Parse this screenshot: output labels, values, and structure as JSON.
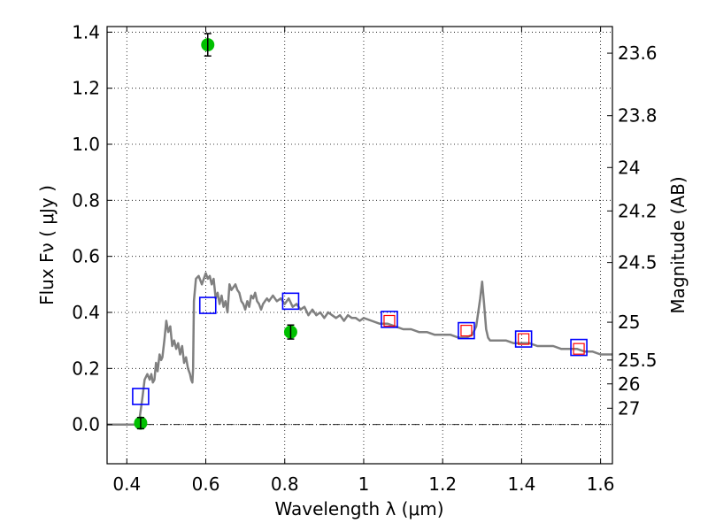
{
  "chart_data": {
    "type": "scatter",
    "xlabel": "Wavelength  λ (μm)",
    "ylabel": "Flux  Fν  ( μJy )",
    "ylabel_right": "Magnitude (AB)",
    "xlim": [
      0.35,
      1.63
    ],
    "ylim": [
      -0.14,
      1.42
    ],
    "grid": true,
    "x_ticks": [
      0.4,
      0.6,
      0.8,
      1.0,
      1.2,
      1.4,
      1.6
    ],
    "x_tick_labels": [
      "0.4",
      "0.6",
      "0.8",
      "1",
      "1.2",
      "1.4",
      "1.6"
    ],
    "y_ticks": [
      0.0,
      0.2,
      0.4,
      0.6,
      0.8,
      1.0,
      1.2,
      1.4
    ],
    "y_tick_labels": [
      "0.0",
      "0.2",
      "0.4",
      "0.6",
      "0.8",
      "1.0",
      "1.2",
      "1.4"
    ],
    "right_ticks": [
      {
        "label": "23.6",
        "flux": 1.325
      },
      {
        "label": "23.8",
        "flux": 1.102
      },
      {
        "label": "24",
        "flux": 0.917
      },
      {
        "label": "24.2",
        "flux": 0.762
      },
      {
        "label": "24.5",
        "flux": 0.578
      },
      {
        "label": "25",
        "flux": 0.365
      },
      {
        "label": "25.5",
        "flux": 0.23
      },
      {
        "label": "26",
        "flux": 0.145
      },
      {
        "label": "27",
        "flux": 0.058
      }
    ],
    "model_spectrum": {
      "color": "#808080",
      "x": [
        0.35,
        0.428,
        0.432,
        0.436,
        0.44,
        0.445,
        0.452,
        0.458,
        0.462,
        0.466,
        0.47,
        0.474,
        0.478,
        0.483,
        0.487,
        0.49,
        0.495,
        0.5,
        0.505,
        0.51,
        0.515,
        0.52,
        0.525,
        0.53,
        0.535,
        0.54,
        0.545,
        0.55,
        0.555,
        0.56,
        0.563,
        0.566,
        0.568,
        0.57,
        0.575,
        0.582,
        0.59,
        0.6,
        0.605,
        0.61,
        0.615,
        0.62,
        0.625,
        0.63,
        0.635,
        0.64,
        0.645,
        0.65,
        0.655,
        0.66,
        0.665,
        0.67,
        0.675,
        0.68,
        0.685,
        0.69,
        0.695,
        0.7,
        0.705,
        0.71,
        0.715,
        0.72,
        0.725,
        0.73,
        0.735,
        0.74,
        0.745,
        0.75,
        0.755,
        0.76,
        0.765,
        0.77,
        0.78,
        0.79,
        0.8,
        0.81,
        0.82,
        0.83,
        0.84,
        0.85,
        0.86,
        0.87,
        0.88,
        0.89,
        0.9,
        0.91,
        0.92,
        0.93,
        0.94,
        0.95,
        0.96,
        0.97,
        0.98,
        0.99,
        1.0,
        1.02,
        1.04,
        1.06,
        1.08,
        1.1,
        1.12,
        1.14,
        1.16,
        1.18,
        1.2,
        1.22,
        1.24,
        1.26,
        1.275,
        1.285,
        1.295,
        1.3,
        1.305,
        1.31,
        1.315,
        1.32,
        1.34,
        1.36,
        1.38,
        1.4,
        1.42,
        1.44,
        1.46,
        1.48,
        1.5,
        1.52,
        1.54,
        1.56,
        1.58,
        1.6,
        1.63
      ],
      "y": [
        0.0,
        0.0,
        0.02,
        0.06,
        0.1,
        0.16,
        0.18,
        0.16,
        0.18,
        0.15,
        0.16,
        0.22,
        0.19,
        0.25,
        0.23,
        0.24,
        0.3,
        0.37,
        0.33,
        0.35,
        0.28,
        0.3,
        0.27,
        0.29,
        0.25,
        0.28,
        0.22,
        0.24,
        0.2,
        0.18,
        0.16,
        0.15,
        0.2,
        0.44,
        0.52,
        0.53,
        0.5,
        0.54,
        0.52,
        0.53,
        0.5,
        0.52,
        0.45,
        0.47,
        0.43,
        0.46,
        0.42,
        0.44,
        0.4,
        0.5,
        0.48,
        0.49,
        0.5,
        0.48,
        0.47,
        0.44,
        0.43,
        0.41,
        0.44,
        0.42,
        0.46,
        0.45,
        0.47,
        0.44,
        0.43,
        0.41,
        0.43,
        0.44,
        0.45,
        0.44,
        0.45,
        0.46,
        0.44,
        0.45,
        0.43,
        0.45,
        0.42,
        0.43,
        0.41,
        0.42,
        0.39,
        0.41,
        0.39,
        0.4,
        0.38,
        0.4,
        0.39,
        0.38,
        0.39,
        0.37,
        0.39,
        0.38,
        0.38,
        0.37,
        0.38,
        0.37,
        0.36,
        0.36,
        0.35,
        0.34,
        0.34,
        0.33,
        0.33,
        0.32,
        0.32,
        0.32,
        0.31,
        0.31,
        0.32,
        0.35,
        0.45,
        0.51,
        0.43,
        0.34,
        0.31,
        0.3,
        0.3,
        0.3,
        0.29,
        0.29,
        0.29,
        0.28,
        0.28,
        0.28,
        0.27,
        0.27,
        0.27,
        0.26,
        0.26,
        0.25,
        0.25
      ]
    },
    "model_points": {
      "color": "#0000ff",
      "x": [
        0.435,
        0.605,
        0.815,
        1.065,
        1.26,
        1.405,
        1.545
      ],
      "y": [
        0.1,
        0.425,
        0.44,
        0.375,
        0.335,
        0.305,
        0.275
      ]
    },
    "model_points_inner": {
      "color": "#ff0000",
      "x": [
        1.065,
        1.26,
        1.405,
        1.545
      ],
      "y": [
        0.37,
        0.335,
        0.305,
        0.27
      ]
    },
    "observed": {
      "color": "#00c000",
      "x": [
        0.435,
        0.605,
        0.815
      ],
      "y": [
        0.005,
        1.355,
        0.33
      ],
      "yerr": [
        0.02,
        0.04,
        0.025
      ]
    }
  }
}
